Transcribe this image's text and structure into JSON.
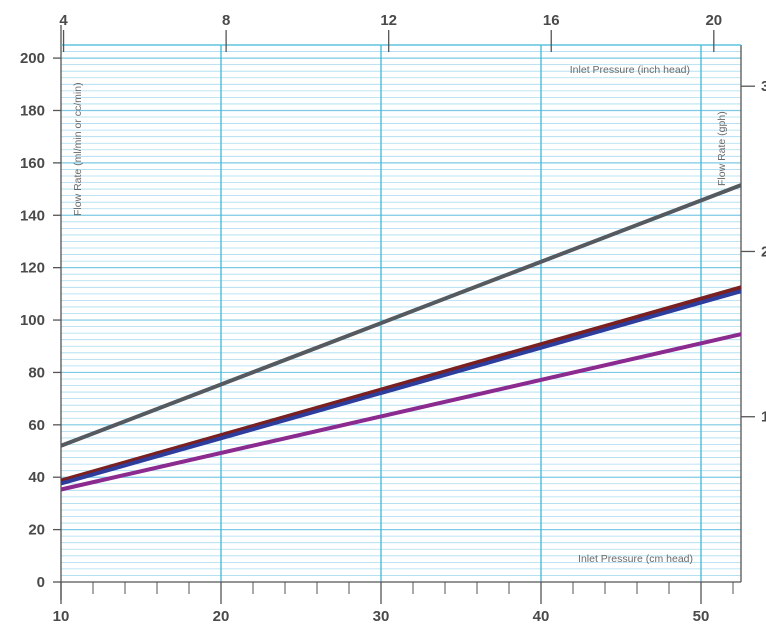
{
  "chart_data": {
    "type": "line",
    "title": "",
    "colors": {
      "grid_minor": "#a9dcef",
      "grid_major": "#3fb8d8",
      "axis": "#555555",
      "tick_text": "#4a4a4a",
      "label_text": "#6a6a6a"
    },
    "axes": {
      "x_bottom": {
        "label": "Inlet Pressure (cm head)",
        "range": [
          10,
          52.5
        ],
        "ticks": [
          10,
          20,
          30,
          40,
          50
        ],
        "tick_labels": [
          "10",
          "20",
          "30",
          "40",
          "50"
        ]
      },
      "x_top": {
        "label": "Inlet Pressure (inch head)",
        "ticks": [
          4,
          8,
          12,
          16,
          20
        ],
        "tick_labels": [
          "4",
          "8",
          "12",
          "16",
          "20"
        ]
      },
      "y_left": {
        "label": "Flow Rate (ml/min or cc/min)",
        "range": [
          0,
          205
        ],
        "ticks": [
          0,
          20,
          40,
          60,
          80,
          100,
          120,
          140,
          160,
          180,
          200
        ],
        "tick_labels": [
          "0",
          "20",
          "40",
          "60",
          "80",
          "100",
          "120",
          "140",
          "160",
          "180",
          "200"
        ]
      },
      "y_right": {
        "label": "Flow Rate (gph)",
        "ticks": [
          1,
          2,
          3
        ],
        "tick_labels": [
          "1",
          "2",
          "3"
        ]
      }
    },
    "grid": true,
    "series": [
      {
        "color": "#555a60",
        "x": [
          10,
          52.5
        ],
        "y": [
          52,
          151.5
        ]
      },
      {
        "color": "#7a2020",
        "x": [
          10,
          52.5
        ],
        "y": [
          38.7,
          112.5
        ]
      },
      {
        "color": "#2e3c9c",
        "x": [
          10,
          52.5
        ],
        "y": [
          37.6,
          111
        ]
      },
      {
        "color": "#8b2a8f",
        "x": [
          10,
          52.5
        ],
        "y": [
          35.3,
          94.6
        ]
      }
    ]
  }
}
